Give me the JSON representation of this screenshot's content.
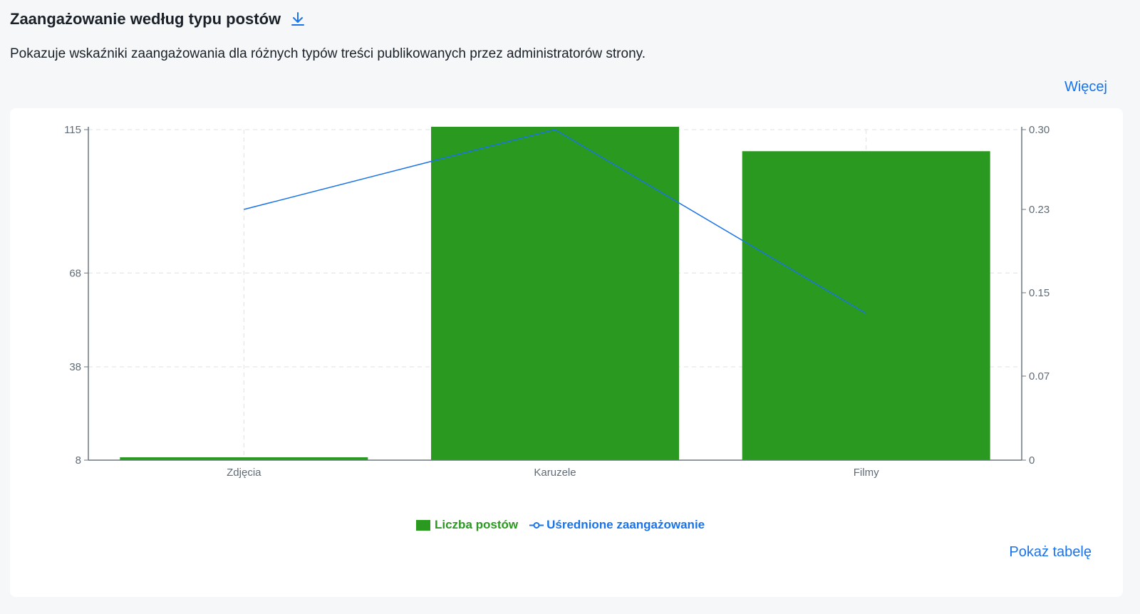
{
  "header": {
    "title": "Zaangażowanie według typu postów",
    "download_icon": "download-icon",
    "description": "Pokazuje wskaźniki zaangażowania dla różnych typów treści publikowanych przez administratorów strony.",
    "more_label": "Więcej"
  },
  "footer": {
    "table_label": "Pokaż tabelę"
  },
  "colors": {
    "bar": "#2a9920",
    "line": "#1a73e8",
    "link": "#1a73e8"
  },
  "chart_data": {
    "type": "bar",
    "categories": [
      "Zdjęcia",
      "Karuzele",
      "Filmy"
    ],
    "series": [
      {
        "name": "Liczba postów",
        "type": "bar",
        "axis": "left",
        "values": [
          8,
          115,
          107
        ]
      },
      {
        "name": "Uśrednione zaangażowanie",
        "type": "line",
        "axis": "right",
        "values": [
          0.23,
          0.3,
          0.13
        ]
      }
    ],
    "left_axis": {
      "ticks": [
        "115",
        "68",
        "38",
        "8"
      ],
      "tick_values": [
        115,
        68,
        38,
        8
      ],
      "ylim": [
        8,
        115
      ]
    },
    "right_axis": {
      "ticks": [
        "0.30",
        "0.23",
        "0.15",
        "0.07",
        "0"
      ],
      "tick_values": [
        0.3,
        0.23,
        0.15,
        0.07,
        0
      ],
      "ylim": [
        0,
        0.3
      ]
    },
    "grid": true,
    "legend_position": "bottom-center"
  }
}
